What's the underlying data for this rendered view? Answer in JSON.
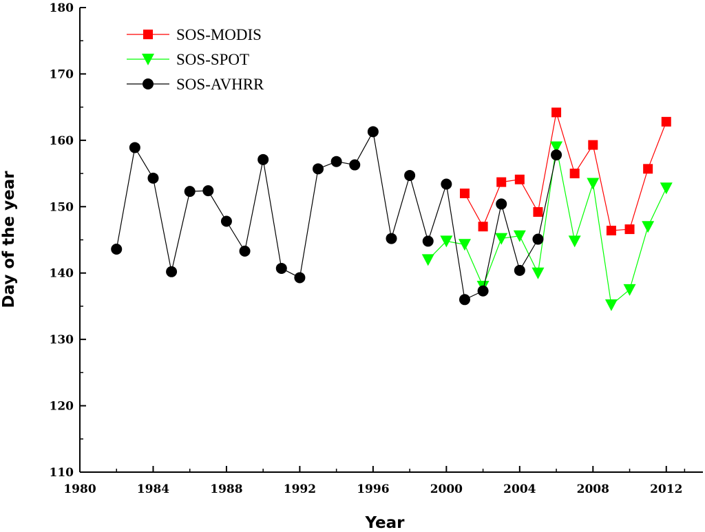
{
  "chart_data": {
    "type": "line",
    "title": "",
    "xlabel": "Year",
    "ylabel": "Day of the year",
    "xlim": [
      1980,
      2014
    ],
    "ylim": [
      110,
      180
    ],
    "xticks": [
      1980,
      1984,
      1988,
      1992,
      1996,
      2000,
      2004,
      2008,
      2012
    ],
    "yticks": [
      110,
      120,
      130,
      140,
      150,
      160,
      170,
      180
    ],
    "grid": false,
    "legend_position": "top-left",
    "series": [
      {
        "name": "SOS-MODIS",
        "color": "#ff0000",
        "marker": "square",
        "x": [
          2001,
          2002,
          2003,
          2004,
          2005,
          2006,
          2007,
          2008,
          2009,
          2010,
          2011,
          2012
        ],
        "y": [
          152,
          147,
          153.7,
          154.1,
          149.2,
          164.2,
          155,
          159.3,
          146.4,
          146.6,
          155.7,
          162.8
        ]
      },
      {
        "name": "SOS-SPOT",
        "color": "#00ff00",
        "marker": "triangle-down",
        "x": [
          1999,
          2000,
          2001,
          2002,
          2003,
          2004,
          2005,
          2006,
          2007,
          2008,
          2009,
          2010,
          2011,
          2012
        ],
        "y": [
          142,
          144.8,
          144.3,
          138,
          145.2,
          145.6,
          140,
          159,
          144.8,
          153.5,
          135.2,
          137.5,
          147,
          152.8
        ]
      },
      {
        "name": "SOS-AVHRR",
        "color": "#000000",
        "marker": "circle",
        "x": [
          1982,
          1983,
          1984,
          1985,
          1986,
          1987,
          1988,
          1989,
          1990,
          1991,
          1992,
          1993,
          1994,
          1995,
          1996,
          1997,
          1998,
          1999,
          2000,
          2001,
          2002,
          2003,
          2004,
          2005,
          2006
        ],
        "y": [
          143.6,
          158.9,
          154.3,
          140.2,
          152.3,
          152.4,
          147.8,
          143.3,
          157.1,
          140.7,
          139.3,
          155.7,
          156.8,
          156.3,
          161.3,
          145.2,
          154.7,
          144.8,
          153.4,
          136,
          137.3,
          150.4,
          140.4,
          145.1,
          157.8
        ]
      }
    ]
  }
}
